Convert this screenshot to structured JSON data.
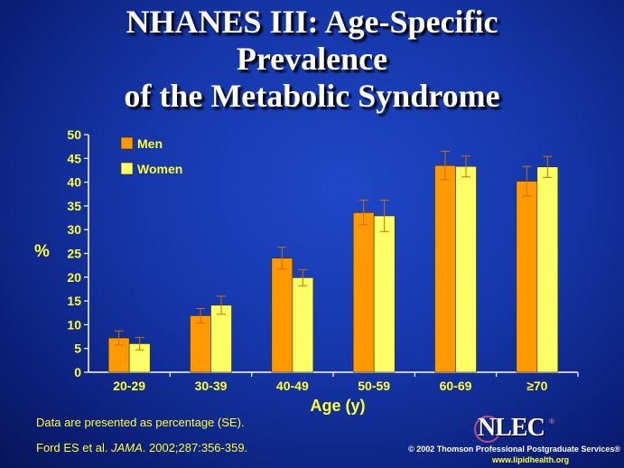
{
  "slide": {
    "title_lines": [
      "NHANES III: Age-Specific",
      "Prevalence",
      "of the Metabolic Syndrome"
    ],
    "footnote_1": "Data are presented as percentage (SE).",
    "citation": {
      "authors": "Ford ES et al.",
      "journal": "JAMA",
      "rest": ". 2002;287:356-359."
    },
    "logo_text": "NLEC",
    "logo_reg": "®",
    "copyright": "© 2002 Thomson Professional Postgraduate Services®",
    "website": "www.lipidhealth.org"
  },
  "colors": {
    "men": "#ff9900",
    "women": "#ffff66",
    "text_accent": "#ffff33",
    "background": "#1536a8"
  },
  "chart_data": {
    "type": "bar",
    "title": "NHANES III: Age-Specific Prevalence of the Metabolic Syndrome",
    "categories": [
      "20-29",
      "30-39",
      "40-49",
      "50-59",
      "60-69",
      "≥70"
    ],
    "series": [
      {
        "name": "Men",
        "values": [
          7.2,
          11.9,
          24.0,
          33.6,
          43.5,
          40.2
        ],
        "error": [
          1.5,
          1.5,
          2.3,
          2.6,
          3.0,
          3.1
        ]
      },
      {
        "name": "Women",
        "values": [
          6.0,
          14.1,
          19.9,
          32.9,
          43.3,
          43.2
        ],
        "error": [
          1.3,
          1.9,
          1.7,
          3.3,
          2.2,
          2.2
        ]
      }
    ],
    "ylabel": "%",
    "xlabel": "Age (y)",
    "ylim": [
      0,
      50
    ],
    "yticks": [
      0,
      5,
      10,
      15,
      20,
      25,
      30,
      35,
      40,
      45,
      50
    ],
    "grid": false,
    "legend": "top-left"
  }
}
